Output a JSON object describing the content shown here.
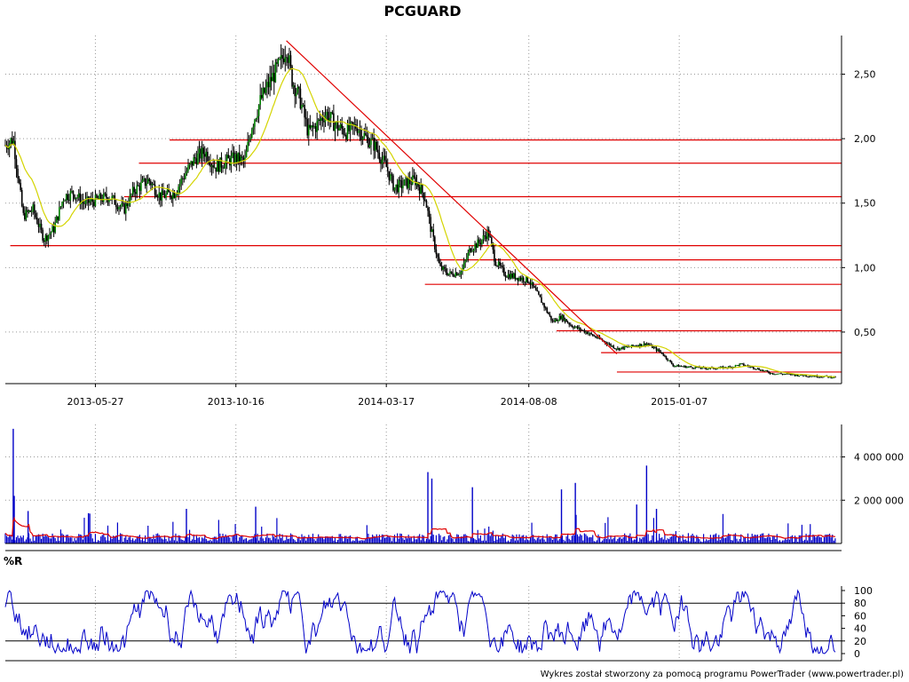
{
  "chart_data": [
    {
      "panel": "price",
      "type": "line",
      "title": "PCGUARD",
      "xlabel": "",
      "ylabel": "",
      "ylim": [
        0.1,
        2.8
      ],
      "y_ticks": [
        "0,50",
        "1,00",
        "1,50",
        "2,00",
        "2,50"
      ],
      "y_tick_values": [
        0.5,
        1.0,
        1.5,
        2.0,
        2.5
      ],
      "x_tick_labels": [
        "2013-05-27",
        "2013-10-16",
        "2014-03-17",
        "2014-08-08",
        "2015-01-07"
      ],
      "x_tick_dates": [
        "2013-05-27",
        "2013-10-16",
        "2014-03-17",
        "2014-08-08",
        "2015-01-07"
      ],
      "x_range": [
        "2013-02-25",
        "2015-06-20"
      ],
      "grid": true,
      "colors": {
        "candles": "#000000",
        "up_body": "#008000",
        "moving_average": "#d4d400",
        "support_lines": "#e00000"
      },
      "close_path": [
        [
          "2013-02-25",
          1.95
        ],
        [
          "2013-03-05",
          2.0
        ],
        [
          "2013-03-10",
          1.7
        ],
        [
          "2013-03-15",
          1.4
        ],
        [
          "2013-03-25",
          1.45
        ],
        [
          "2013-04-05",
          1.22
        ],
        [
          "2013-04-15",
          1.3
        ],
        [
          "2013-04-25",
          1.55
        ],
        [
          "2013-05-05",
          1.58
        ],
        [
          "2013-05-15",
          1.5
        ],
        [
          "2013-05-27",
          1.52
        ],
        [
          "2013-06-10",
          1.55
        ],
        [
          "2013-06-25",
          1.45
        ],
        [
          "2013-07-05",
          1.6
        ],
        [
          "2013-07-20",
          1.68
        ],
        [
          "2013-08-01",
          1.55
        ],
        [
          "2013-08-15",
          1.58
        ],
        [
          "2013-08-25",
          1.72
        ],
        [
          "2013-09-05",
          1.85
        ],
        [
          "2013-09-15",
          1.9
        ],
        [
          "2013-09-25",
          1.78
        ],
        [
          "2013-10-05",
          1.82
        ],
        [
          "2013-10-16",
          1.85
        ],
        [
          "2013-10-25",
          1.82
        ],
        [
          "2013-11-01",
          2.1
        ],
        [
          "2013-11-10",
          2.3
        ],
        [
          "2013-11-20",
          2.45
        ],
        [
          "2013-12-01",
          2.6
        ],
        [
          "2013-12-06",
          2.72
        ],
        [
          "2013-12-12",
          2.45
        ],
        [
          "2013-12-20",
          2.3
        ],
        [
          "2013-12-28",
          2.05
        ],
        [
          "2014-01-05",
          2.1
        ],
        [
          "2014-01-15",
          2.2
        ],
        [
          "2014-01-25",
          2.1
        ],
        [
          "2014-02-05",
          2.05
        ],
        [
          "2014-02-15",
          2.1
        ],
        [
          "2014-02-25",
          2.0
        ],
        [
          "2014-03-05",
          1.95
        ],
        [
          "2014-03-17",
          1.78
        ],
        [
          "2014-03-25",
          1.62
        ],
        [
          "2014-04-05",
          1.65
        ],
        [
          "2014-04-15",
          1.68
        ],
        [
          "2014-04-25",
          1.55
        ],
        [
          "2014-05-01",
          1.3
        ],
        [
          "2014-05-10",
          1.0
        ],
        [
          "2014-05-20",
          0.95
        ],
        [
          "2014-06-01",
          0.97
        ],
        [
          "2014-06-10",
          1.15
        ],
        [
          "2014-06-20",
          1.2
        ],
        [
          "2014-06-28",
          1.28
        ],
        [
          "2014-07-05",
          1.05
        ],
        [
          "2014-07-15",
          0.95
        ],
        [
          "2014-07-25",
          0.93
        ],
        [
          "2014-08-08",
          0.9
        ],
        [
          "2014-08-20",
          0.75
        ],
        [
          "2014-09-01",
          0.58
        ],
        [
          "2014-09-10",
          0.62
        ],
        [
          "2014-09-20",
          0.55
        ],
        [
          "2014-10-05",
          0.5
        ],
        [
          "2014-10-20",
          0.44
        ],
        [
          "2014-11-05",
          0.37
        ],
        [
          "2014-11-20",
          0.39
        ],
        [
          "2014-12-05",
          0.41
        ],
        [
          "2014-12-20",
          0.34
        ],
        [
          "2015-01-01",
          0.24
        ],
        [
          "2015-01-15",
          0.23
        ],
        [
          "2015-02-01",
          0.22
        ],
        [
          "2015-02-15",
          0.22
        ],
        [
          "2015-03-01",
          0.23
        ],
        [
          "2015-03-10",
          0.25
        ],
        [
          "2015-03-25",
          0.22
        ],
        [
          "2015-04-10",
          0.18
        ],
        [
          "2015-05-01",
          0.17
        ],
        [
          "2015-05-20",
          0.16
        ],
        [
          "2015-06-15",
          0.15
        ]
      ],
      "resistance_trendline": {
        "from": [
          "2013-12-06",
          2.76
        ],
        "to": [
          "2014-11-05",
          0.33
        ]
      },
      "horizontal_levels": [
        {
          "from": "2013-08-10",
          "value": 1.99
        },
        {
          "from": "2013-07-10",
          "value": 1.81
        },
        {
          "from": "2013-06-25",
          "value": 1.55
        },
        {
          "from": "2013-03-02",
          "value": 1.17
        },
        {
          "from": "2014-05-10",
          "value": 1.06
        },
        {
          "from": "2014-04-25",
          "value": 0.87
        },
        {
          "from": "2014-09-10",
          "value": 0.67
        },
        {
          "from": "2014-09-05",
          "value": 0.51
        },
        {
          "from": "2014-10-20",
          "value": 0.34
        },
        {
          "from": "2014-11-05",
          "value": 0.19
        }
      ]
    },
    {
      "panel": "volume",
      "type": "bar",
      "ylim": [
        0,
        5500000
      ],
      "y_ticks": [
        "2 000 000",
        "4 000 000"
      ],
      "y_tick_values": [
        2000000,
        4000000
      ],
      "colors": {
        "bars": "#0000c8",
        "average": "#e00000"
      },
      "spikes": [
        [
          "2013-03-05",
          5300000
        ],
        [
          "2013-03-06",
          2200000
        ],
        [
          "2013-03-20",
          1500000
        ],
        [
          "2013-05-20",
          1400000
        ],
        [
          "2013-08-27",
          1600000
        ],
        [
          "2013-11-05",
          1700000
        ],
        [
          "2014-04-28",
          3300000
        ],
        [
          "2014-05-02",
          3000000
        ],
        [
          "2014-06-12",
          2600000
        ],
        [
          "2014-09-10",
          2500000
        ],
        [
          "2014-09-24",
          2800000
        ],
        [
          "2014-12-05",
          3600000
        ],
        [
          "2014-11-25",
          1800000
        ],
        [
          "2014-12-15",
          1600000
        ]
      ],
      "average_level_typical": 250000
    },
    {
      "panel": "williams_r",
      "type": "line",
      "label": "%R",
      "ylim": [
        0,
        100
      ],
      "y_ticks": [
        "0",
        "20",
        "40",
        "60",
        "80",
        "100"
      ],
      "y_tick_values": [
        0,
        20,
        40,
        60,
        80,
        100
      ],
      "reference_levels": [
        20,
        80
      ],
      "colors": {
        "line": "#0000c8"
      }
    }
  ],
  "footer": "Wykres został stworzony za pomocą programu PowerTrader (www.powertrader.pl)"
}
